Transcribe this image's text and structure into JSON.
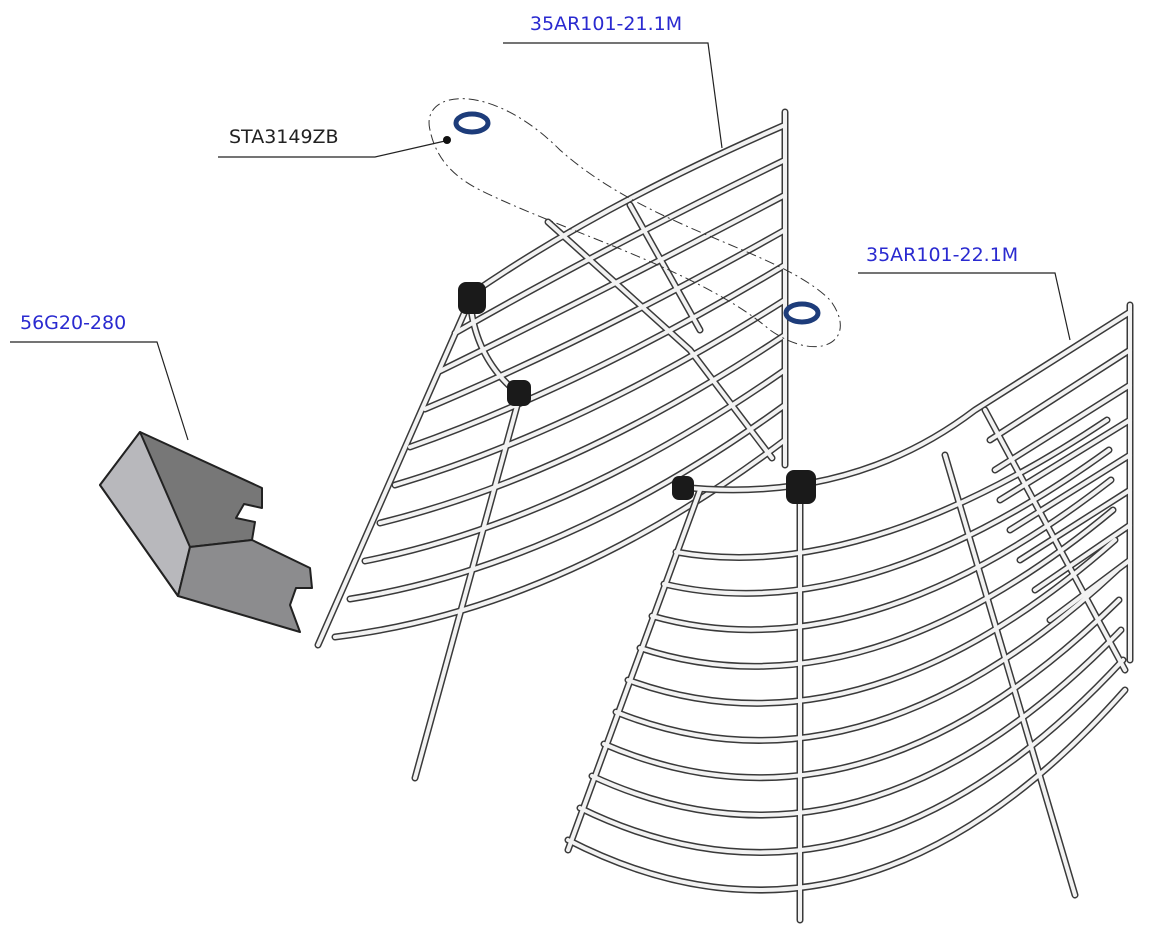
{
  "callouts": [
    {
      "label": "35AR101-21.1M"
    },
    {
      "label": "STA3149ZB"
    },
    {
      "label": "35AR101-22.1M"
    },
    {
      "label": "56G20-280"
    }
  ]
}
